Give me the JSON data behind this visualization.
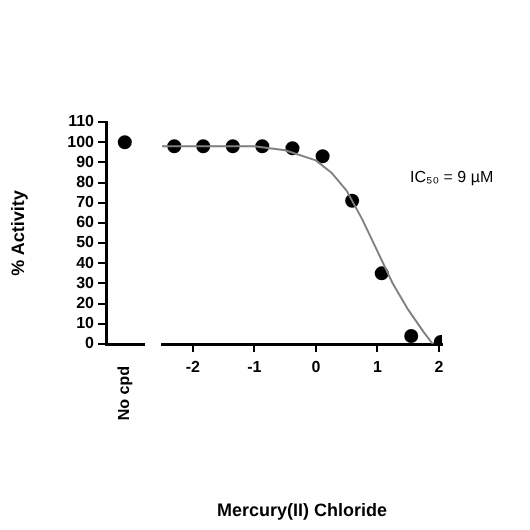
{
  "chart_data": [
    {
      "type": "scatter",
      "ylabel": "% Activity",
      "categories": [
        "No cpd"
      ],
      "ylim": [
        0,
        110
      ],
      "yticks": [
        0,
        10,
        20,
        30,
        40,
        50,
        60,
        70,
        80,
        90,
        100,
        110
      ],
      "grid": false,
      "marker": "circle",
      "tick_labels": true,
      "series": [
        {
          "color": "#000000",
          "values": [
            100
          ]
        }
      ]
    },
    {
      "type": "scatter",
      "xlabel": "Mercury(II) Chloride",
      "xlim": [
        -2.5,
        2.05
      ],
      "xticks": [
        -2,
        -1,
        0,
        1,
        2
      ],
      "ylim": [
        0,
        110
      ],
      "grid": false,
      "marker": "circle",
      "tick_labels": "x",
      "annotations": [
        "IC₅₀ = 9 µM"
      ],
      "series": [
        {
          "color": "#000000",
          "x": [
            -2.3,
            -1.83,
            -1.35,
            -0.87,
            -0.38,
            0.11,
            0.59,
            1.07,
            1.55,
            2.03
          ],
          "values": [
            98,
            98,
            98,
            98,
            97,
            93,
            71,
            35,
            4,
            1
          ]
        },
        {
          "type": "line",
          "color": "#808080",
          "marker": "none",
          "x": [
            -2.5,
            -2,
            -1.5,
            -1,
            -0.5,
            0,
            0.25,
            0.5,
            0.75,
            1,
            1.25,
            1.5,
            1.75,
            1.9
          ],
          "values": [
            98,
            98,
            98,
            98,
            96,
            91,
            85,
            76,
            62,
            46,
            30,
            17,
            6,
            0
          ]
        }
      ]
    }
  ]
}
